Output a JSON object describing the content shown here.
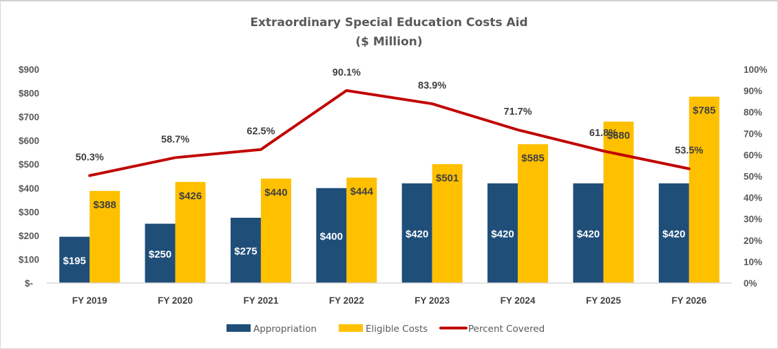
{
  "chart_data": {
    "type": "bar",
    "title": "Extraordinary Special Education Costs Aid",
    "subtitle": "($ Million)",
    "categories": [
      "FY 2019",
      "FY 2020",
      "FY 2021",
      "FY 2022",
      "FY 2023",
      "FY 2024",
      "FY 2025",
      "FY 2026"
    ],
    "series": [
      {
        "name": "Appropriation",
        "type": "bar",
        "axis": "left",
        "color": "#1F4E79",
        "values": [
          195,
          250,
          275,
          400,
          420,
          420,
          420,
          420
        ],
        "labels": [
          "$195",
          "$250",
          "$275",
          "$400",
          "$420",
          "$420",
          "$420",
          "$420"
        ]
      },
      {
        "name": "Eligible Costs",
        "type": "bar",
        "axis": "left",
        "color": "#FFC000",
        "values": [
          388,
          426,
          440,
          444,
          501,
          585,
          680,
          785
        ],
        "labels": [
          "$388",
          "$426",
          "$440",
          "$444",
          "$501",
          "$585",
          "$680",
          "$785"
        ]
      },
      {
        "name": "Percent Covered",
        "type": "line",
        "axis": "right",
        "color": "#C00000",
        "values": [
          50.3,
          58.7,
          62.5,
          90.1,
          83.9,
          71.7,
          61.8,
          53.5
        ],
        "labels": [
          "50.3%",
          "58.7%",
          "62.5%",
          "90.1%",
          "83.9%",
          "71.7%",
          "61.8%",
          "53.5%"
        ]
      }
    ],
    "ylim": [
      0,
      900
    ],
    "y2lim": [
      0,
      100
    ],
    "yticks": [
      "$-",
      "$100",
      "$200",
      "$300",
      "$400",
      "$500",
      "$600",
      "$700",
      "$800",
      "$900"
    ],
    "y2ticks": [
      "0%",
      "10%",
      "20%",
      "30%",
      "40%",
      "50%",
      "60%",
      "70%",
      "80%",
      "90%",
      "100%"
    ],
    "xlabel": "",
    "ylabel": "",
    "grid": false,
    "legend": "bottom"
  }
}
